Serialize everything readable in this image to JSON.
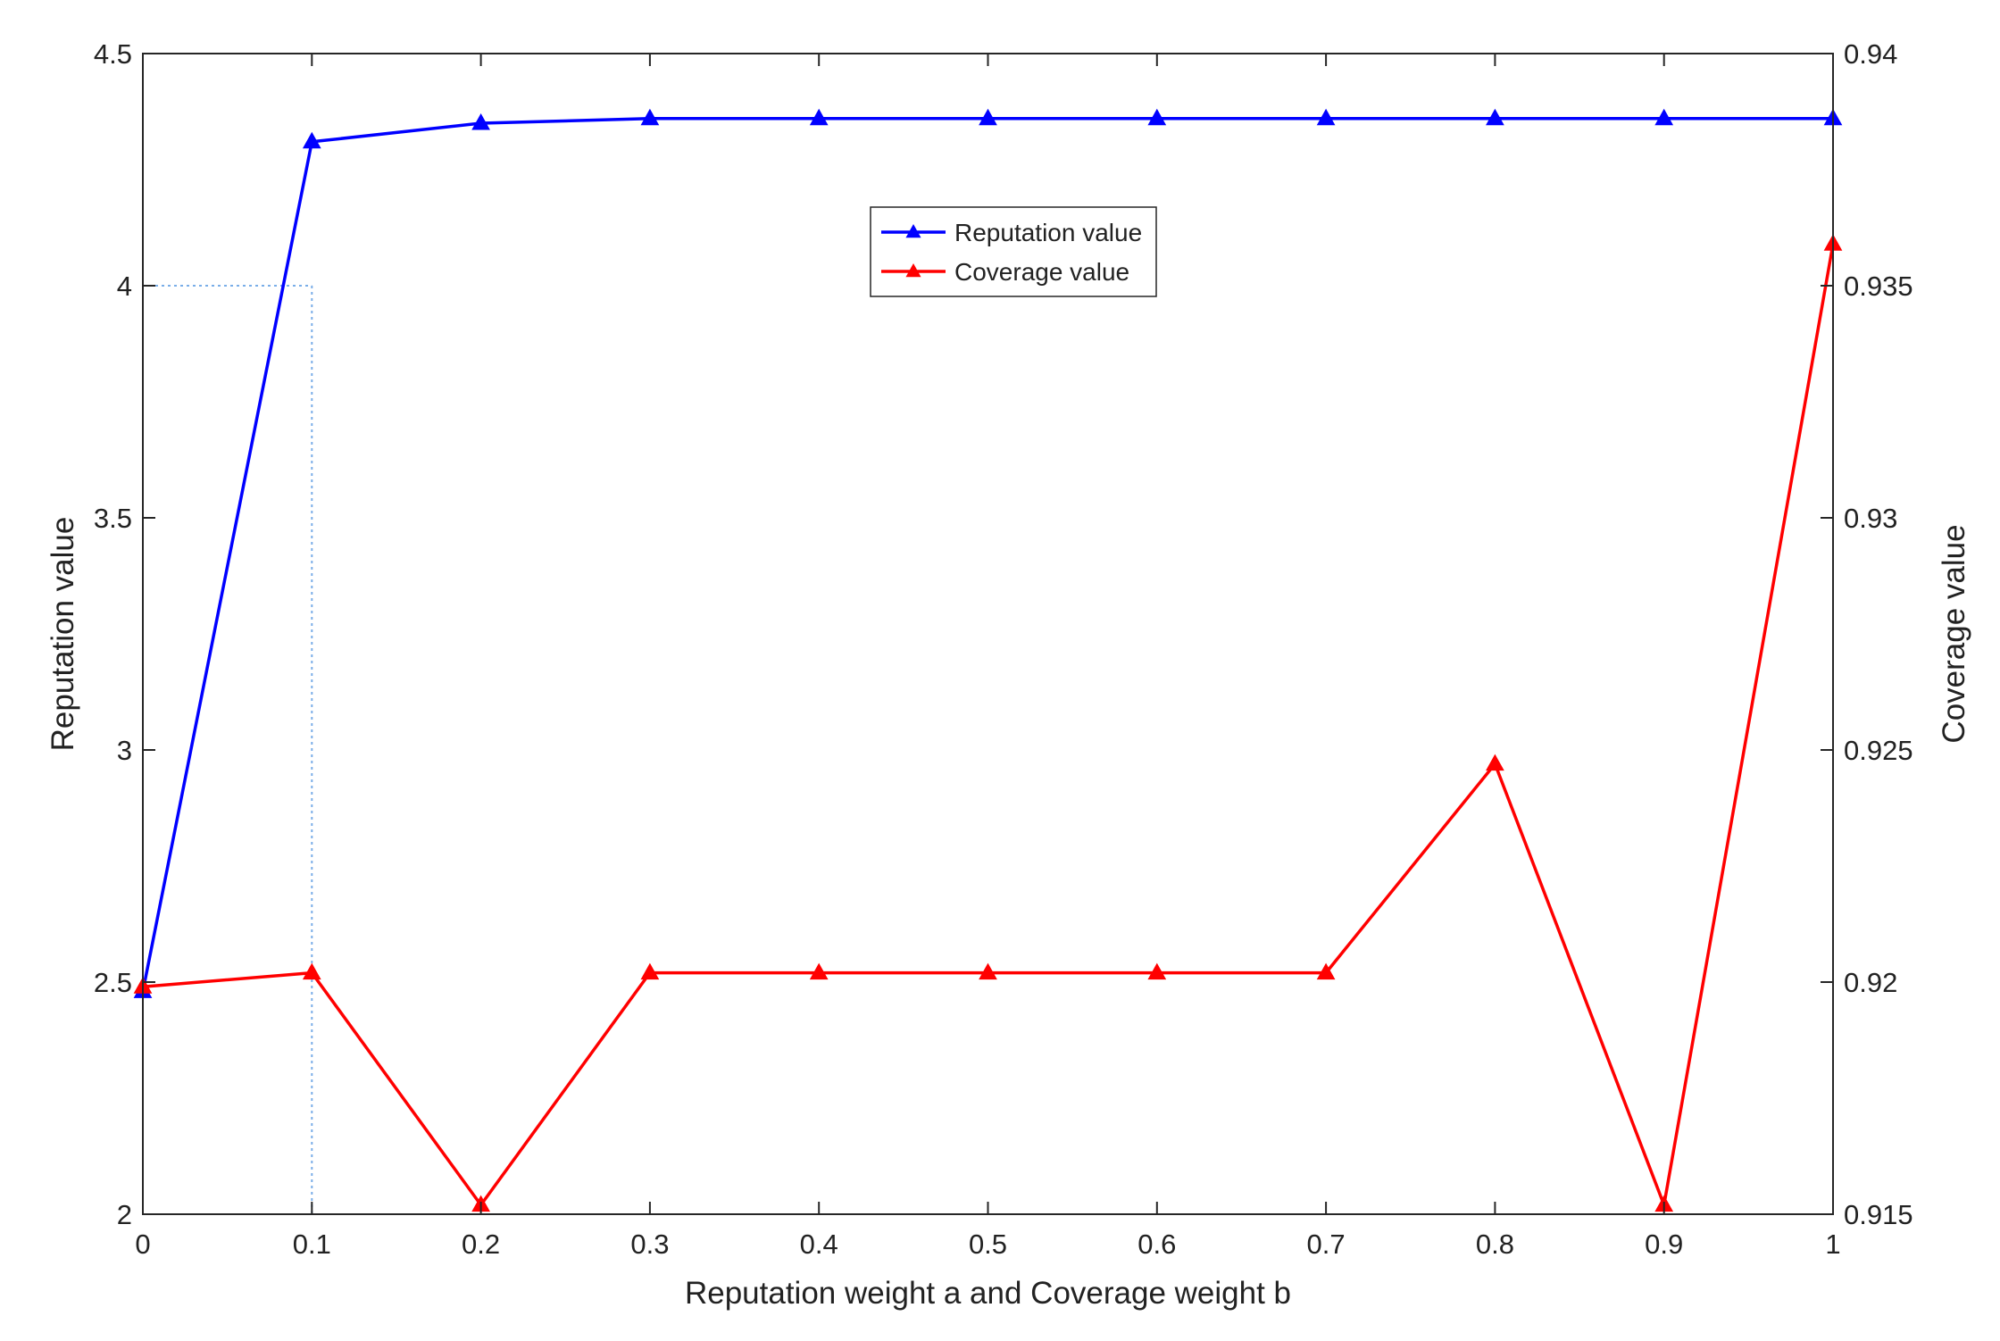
{
  "chart_data": {
    "type": "line",
    "title": "",
    "xlabel": "Reputation weight a and Coverage weight b",
    "ylabel_left": "Reputation value",
    "ylabel_right": "Coverage value",
    "x": [
      0,
      0.1,
      0.2,
      0.3,
      0.4,
      0.5,
      0.6,
      0.7,
      0.8,
      0.9,
      1
    ],
    "xlim": [
      0,
      1
    ],
    "xticks": [
      "0",
      "0.1",
      "0.2",
      "0.3",
      "0.4",
      "0.5",
      "0.6",
      "0.7",
      "0.8",
      "0.9",
      "1"
    ],
    "ylim_left": [
      2,
      4.5
    ],
    "yticks_left": [
      2,
      2.5,
      3,
      3.5,
      4,
      4.5
    ],
    "ytick_labels_left": [
      "2",
      "2.5",
      "3",
      "3.5",
      "4",
      "4.5"
    ],
    "ylim_right": [
      0.915,
      0.94
    ],
    "yticks_right": [
      0.915,
      0.92,
      0.925,
      0.93,
      0.935,
      0.94
    ],
    "ytick_labels_right": [
      "0.915",
      "0.92",
      "0.925",
      "0.93",
      "0.935",
      "0.94"
    ],
    "grid": false,
    "legend_position": "top-center",
    "series": [
      {
        "name": "Reputation value",
        "axis": "left",
        "color": "#0000ff",
        "marker": "triangle",
        "values": [
          2.48,
          4.31,
          4.35,
          4.36,
          4.36,
          4.36,
          4.36,
          4.36,
          4.36,
          4.36,
          4.36
        ]
      },
      {
        "name": "Coverage value",
        "axis": "right",
        "color": "#ff0000",
        "marker": "triangle",
        "values": [
          0.9199,
          0.9202,
          0.9152,
          0.9202,
          0.9202,
          0.9202,
          0.9202,
          0.9202,
          0.9247,
          0.9152,
          0.9359
        ]
      }
    ],
    "reference_lines": {
      "color": "#7aaee8",
      "style": "dotted",
      "x": 0.1,
      "y_left": 4
    }
  }
}
